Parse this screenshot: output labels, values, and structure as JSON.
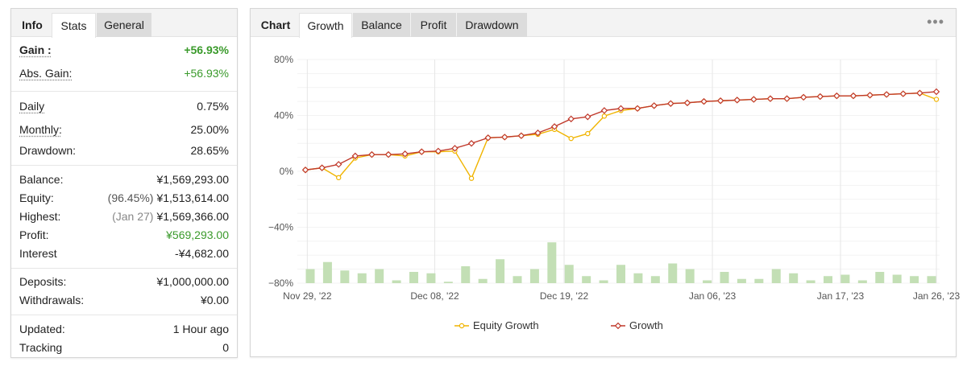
{
  "left_tabs": {
    "info": "Info",
    "stats": "Stats",
    "general": "General"
  },
  "stats": {
    "gain_label": "Gain :",
    "gain_value": "+56.93%",
    "abs_gain_label": "Abs. Gain:",
    "abs_gain_value": "+56.93%",
    "daily_label": "Daily",
    "daily_value": "0.75%",
    "monthly_label": "Monthly:",
    "monthly_value": "25.00%",
    "drawdown_label": "Drawdown:",
    "drawdown_value": "28.65%",
    "balance_label": "Balance:",
    "balance_value": "¥1,569,293.00",
    "equity_label": "Equity:",
    "equity_pct": "(96.45%)",
    "equity_value": "¥1,513,614.00",
    "highest_label": "Highest:",
    "highest_date": "(Jan 27)",
    "highest_value": "¥1,569,366.00",
    "profit_label": "Profit:",
    "profit_value": "¥569,293.00",
    "interest_label": "Interest",
    "interest_value": "-¥4,682.00",
    "deposits_label": "Deposits:",
    "deposits_value": "¥1,000,000.00",
    "withdrawals_label": "Withdrawals:",
    "withdrawals_value": "¥0.00",
    "updated_label": "Updated:",
    "updated_value": "1 Hour ago",
    "tracking_label": "Tracking",
    "tracking_value": "0"
  },
  "right_tabs": {
    "chart": "Chart",
    "growth": "Growth",
    "balance": "Balance",
    "profit": "Profit",
    "drawdown": "Drawdown"
  },
  "more_icon": "ellipsis-icon",
  "colors": {
    "growth": "#c0392b",
    "equity": "#f0b400",
    "bars": "#c3dfb5",
    "gain_green": "#3a9a2b"
  },
  "chart_data": {
    "type": "line",
    "y_ticks": [
      "80%",
      "40%",
      "0%",
      "−40%",
      "−80%"
    ],
    "ylim": [
      -80,
      80
    ],
    "x_ticks": [
      "Nov 29, '22",
      "Dec 08, '22",
      "Dec 19, '22",
      "Jan 06, '23",
      "Jan 17, '23",
      "Jan 26, '23"
    ],
    "legend": [
      "Equity Growth",
      "Growth"
    ],
    "legend_position": "bottom",
    "series": [
      {
        "name": "Growth",
        "values": [
          1,
          2.5,
          5,
          11,
          12,
          12,
          12.5,
          14,
          14.5,
          16.5,
          20,
          24,
          24.5,
          25.5,
          27.5,
          32,
          37.5,
          39,
          43.5,
          45,
          45,
          47,
          48.5,
          49,
          50,
          50.5,
          51,
          51.5,
          52,
          52,
          53,
          53.5,
          54,
          54,
          54.5,
          55,
          55.5,
          56,
          57
        ]
      },
      {
        "name": "Equity Growth",
        "values": [
          1,
          2.5,
          -4.5,
          9.5,
          12,
          12,
          11,
          14,
          14,
          14.5,
          -5,
          24,
          24.5,
          25.5,
          26.5,
          30,
          23.5,
          27,
          39.5,
          43.5,
          45,
          47,
          48.5,
          49,
          50,
          50.5,
          51,
          51.5,
          52,
          52,
          53,
          53.5,
          54,
          54,
          54.5,
          55,
          55.5,
          56,
          51.5
        ]
      }
    ],
    "bars_unlabeled": [
      10,
      15,
      9,
      7,
      10,
      2,
      8,
      7,
      1,
      12,
      3,
      17,
      5,
      10,
      29,
      13,
      5,
      2,
      13,
      7,
      5,
      14,
      10,
      2,
      8,
      3,
      3,
      10,
      7,
      2,
      5,
      6,
      2,
      8,
      6,
      5,
      5
    ]
  }
}
